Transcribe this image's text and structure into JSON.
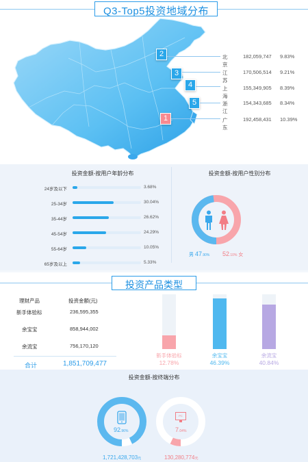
{
  "header": {
    "title": "Q3-Top5投资地域分布"
  },
  "regions": [
    {
      "rank": "1",
      "name": "广东",
      "amount": "192,458,431",
      "pct": "10.39%"
    },
    {
      "rank": "2",
      "name": "北京",
      "amount": "182,059,747",
      "pct": "9.83%"
    },
    {
      "rank": "3",
      "name": "江苏",
      "amount": "170,506,514",
      "pct": "9.21%"
    },
    {
      "rank": "4",
      "name": "上海",
      "amount": "155,349,905",
      "pct": "8.39%"
    },
    {
      "rank": "5",
      "name": "浙江",
      "amount": "154,343,685",
      "pct": "8.34%"
    }
  ],
  "age_panel": {
    "title": "投资金额-按用户年龄分布",
    "groups": [
      {
        "label": "24岁及以下",
        "pct_text": "3.68%",
        "value": 3.68
      },
      {
        "label": "25-34岁",
        "pct_text": "30.04%",
        "value": 30.04
      },
      {
        "label": "35-44岁",
        "pct_text": "26.62%",
        "value": 26.62
      },
      {
        "label": "45-54岁",
        "pct_text": "24.29%",
        "value": 24.29
      },
      {
        "label": "55-64岁",
        "pct_text": "10.05%",
        "value": 10.05
      },
      {
        "label": "65岁及以上",
        "pct_text": "5.33%",
        "value": 5.33
      }
    ],
    "scale_max": 50
  },
  "gender_panel": {
    "title": "投资金额-按用户性别分布",
    "male_label": "男",
    "male_int": "47",
    "male_dec": ".90%",
    "female_int": "52",
    "female_dec": ".10%",
    "female_label": "女",
    "male_value": 47.9,
    "male_color": "#5bb8ef",
    "female_color": "#f8a5ab"
  },
  "products": {
    "title": "投资产品类型",
    "col_product": "理财产品",
    "col_amount": "投资金额(元)",
    "rows": [
      {
        "name": "新手体验标",
        "amount": "236,595,355"
      },
      {
        "name": "余宝宝",
        "amount": "858,944,002"
      },
      {
        "name": "余流宝",
        "amount": "756,170,120"
      }
    ],
    "total_label": "合计",
    "total_amount": "1,851,709,477",
    "bars": [
      {
        "name": "新手体验标",
        "pct": "12.78%",
        "value": 12.78,
        "color": "#f8a5ab"
      },
      {
        "name": "余宝宝",
        "pct": "46.39%",
        "value": 46.39,
        "color": "#4fb8ef"
      },
      {
        "name": "余流宝",
        "pct": "40.84%",
        "value": 40.84,
        "color": "#b7a8e3"
      }
    ]
  },
  "terminal_panel": {
    "title": "投资金额-按终端分布",
    "mobile_int": "92",
    "mobile_dec": ".96%",
    "mobile_value": 92.96,
    "mobile_amount": "1,721,428,703",
    "pc_int": "7",
    "pc_dec": ".04%",
    "pc_value": 7.04,
    "pc_icon_text": "PC",
    "pc_amount": "130,280,774",
    "unit": "元"
  }
}
